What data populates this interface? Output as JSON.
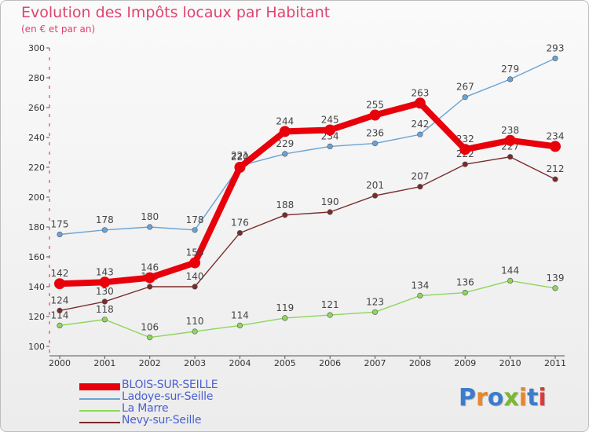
{
  "title": "Evolution des Impôts locaux par Habitant",
  "subtitle": "(en € et par an)",
  "logo": {
    "text": "Proxiti",
    "letter_colors": [
      "#3d7cc9",
      "#e8862a",
      "#3d7cc9",
      "#7ab833",
      "#e8862a",
      "#3d7cc9",
      "#d93a3a"
    ]
  },
  "chart_data": {
    "type": "line",
    "title": "Evolution des Impôts locaux par Habitant",
    "subtitle": "(en € et par an)",
    "xlabel": "",
    "ylabel": "",
    "x": [
      "2000",
      "2001",
      "2002",
      "2003",
      "2004",
      "2005",
      "2006",
      "2007",
      "2008",
      "2009",
      "2010",
      "2011"
    ],
    "ylim": [
      100,
      300
    ],
    "yticks": [
      100,
      120,
      140,
      160,
      180,
      200,
      220,
      240,
      260,
      280,
      300
    ],
    "grid": false,
    "legend_position": "bottom-left",
    "series": [
      {
        "name": "BLOIS-SUR-SEILLE",
        "color": "#e8000b",
        "emphasis": "bold",
        "values": [
          142,
          143,
          146,
          156,
          220,
          244,
          245,
          255,
          263,
          232,
          238,
          234
        ],
        "labels": [
          "142",
          "143",
          "146",
          "156",
          "220",
          "244",
          "245",
          "255",
          "263",
          "232",
          "238",
          "234"
        ]
      },
      {
        "name": "Ladoye-sur-Seille",
        "color": "#6aa3d5",
        "emphasis": "normal",
        "values": [
          175,
          178,
          180,
          178,
          221,
          229,
          234,
          236,
          242,
          267,
          279,
          293
        ],
        "labels": [
          "175",
          "178",
          "180",
          "178",
          "221",
          "229",
          "234",
          "236",
          "242",
          "267",
          "279",
          "293"
        ]
      },
      {
        "name": "La Marre",
        "color": "#8ed65c",
        "emphasis": "normal",
        "values": [
          114,
          118,
          106,
          110,
          114,
          119,
          121,
          123,
          134,
          136,
          144,
          139
        ],
        "labels": [
          "114",
          "118",
          "106",
          "110",
          "114",
          "119",
          "121",
          "123",
          "134",
          "136",
          "144",
          "139"
        ]
      },
      {
        "name": "Nevy-sur-Seille",
        "color": "#7a2b2b",
        "emphasis": "normal",
        "values": [
          124,
          130,
          140,
          140,
          176,
          188,
          190,
          201,
          207,
          222,
          227,
          212
        ],
        "labels": [
          "124",
          "130",
          "140",
          "140",
          "176",
          "188",
          "190",
          "201",
          "207",
          "222",
          "227",
          "212"
        ]
      }
    ]
  }
}
